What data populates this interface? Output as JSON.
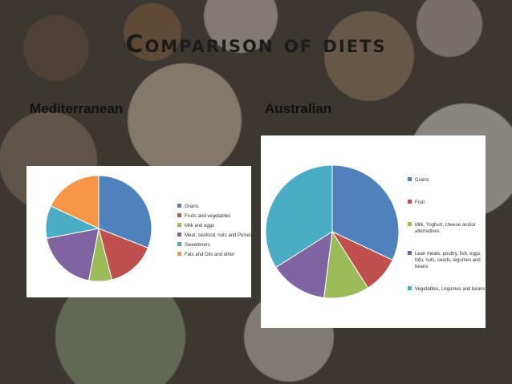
{
  "title": "Comparison of diets",
  "charts": [
    {
      "heading": "Mediterranean",
      "type": "pie",
      "categories": [
        "Grains",
        "Fruits and vegetables",
        "Milk and eggs",
        "Meat, seafood, nuts and Pulses",
        "Sweeteners",
        "Fats and Oils and other"
      ],
      "values": [
        31,
        15,
        7,
        19,
        10,
        18
      ],
      "colors": [
        "#4F81BD",
        "#C0504D",
        "#9BBB59",
        "#8064A2",
        "#4BACC6",
        "#F79646"
      ],
      "legend_position": "right"
    },
    {
      "heading": "Australian",
      "type": "pie",
      "categories": [
        "Grains",
        "Fruit",
        "Milk, Yoghurt, cheese and/or alternatives",
        "Lean meats, poultry, fish, eggs, tofu, nuts, seeds, legumes and beans",
        "Vegetables, Legumes and beans"
      ],
      "values": [
        32,
        9,
        11,
        14,
        34
      ],
      "colors": [
        "#4F81BD",
        "#C0504D",
        "#9BBB59",
        "#8064A2",
        "#4BACC6"
      ],
      "legend_position": "right"
    }
  ],
  "chart_data": [
    {
      "type": "pie",
      "title": "",
      "categories": [
        "Grains",
        "Fruits and vegetables",
        "Milk and eggs",
        "Meat, seafood, nuts and Pulses",
        "Sweeteners",
        "Fats and Oils and other"
      ],
      "values": [
        31,
        15,
        7,
        19,
        10,
        18
      ],
      "legend": "right"
    },
    {
      "type": "pie",
      "title": "",
      "categories": [
        "Grains",
        "Fruit",
        "Milk, Yoghurt, cheese and/or alternatives",
        "Lean meats, poultry, fish, eggs, tofu, nuts, seeds, legumes and beans",
        "Vegetables, Legumes and beans"
      ],
      "values": [
        32,
        9,
        11,
        14,
        34
      ],
      "legend": "right"
    }
  ]
}
